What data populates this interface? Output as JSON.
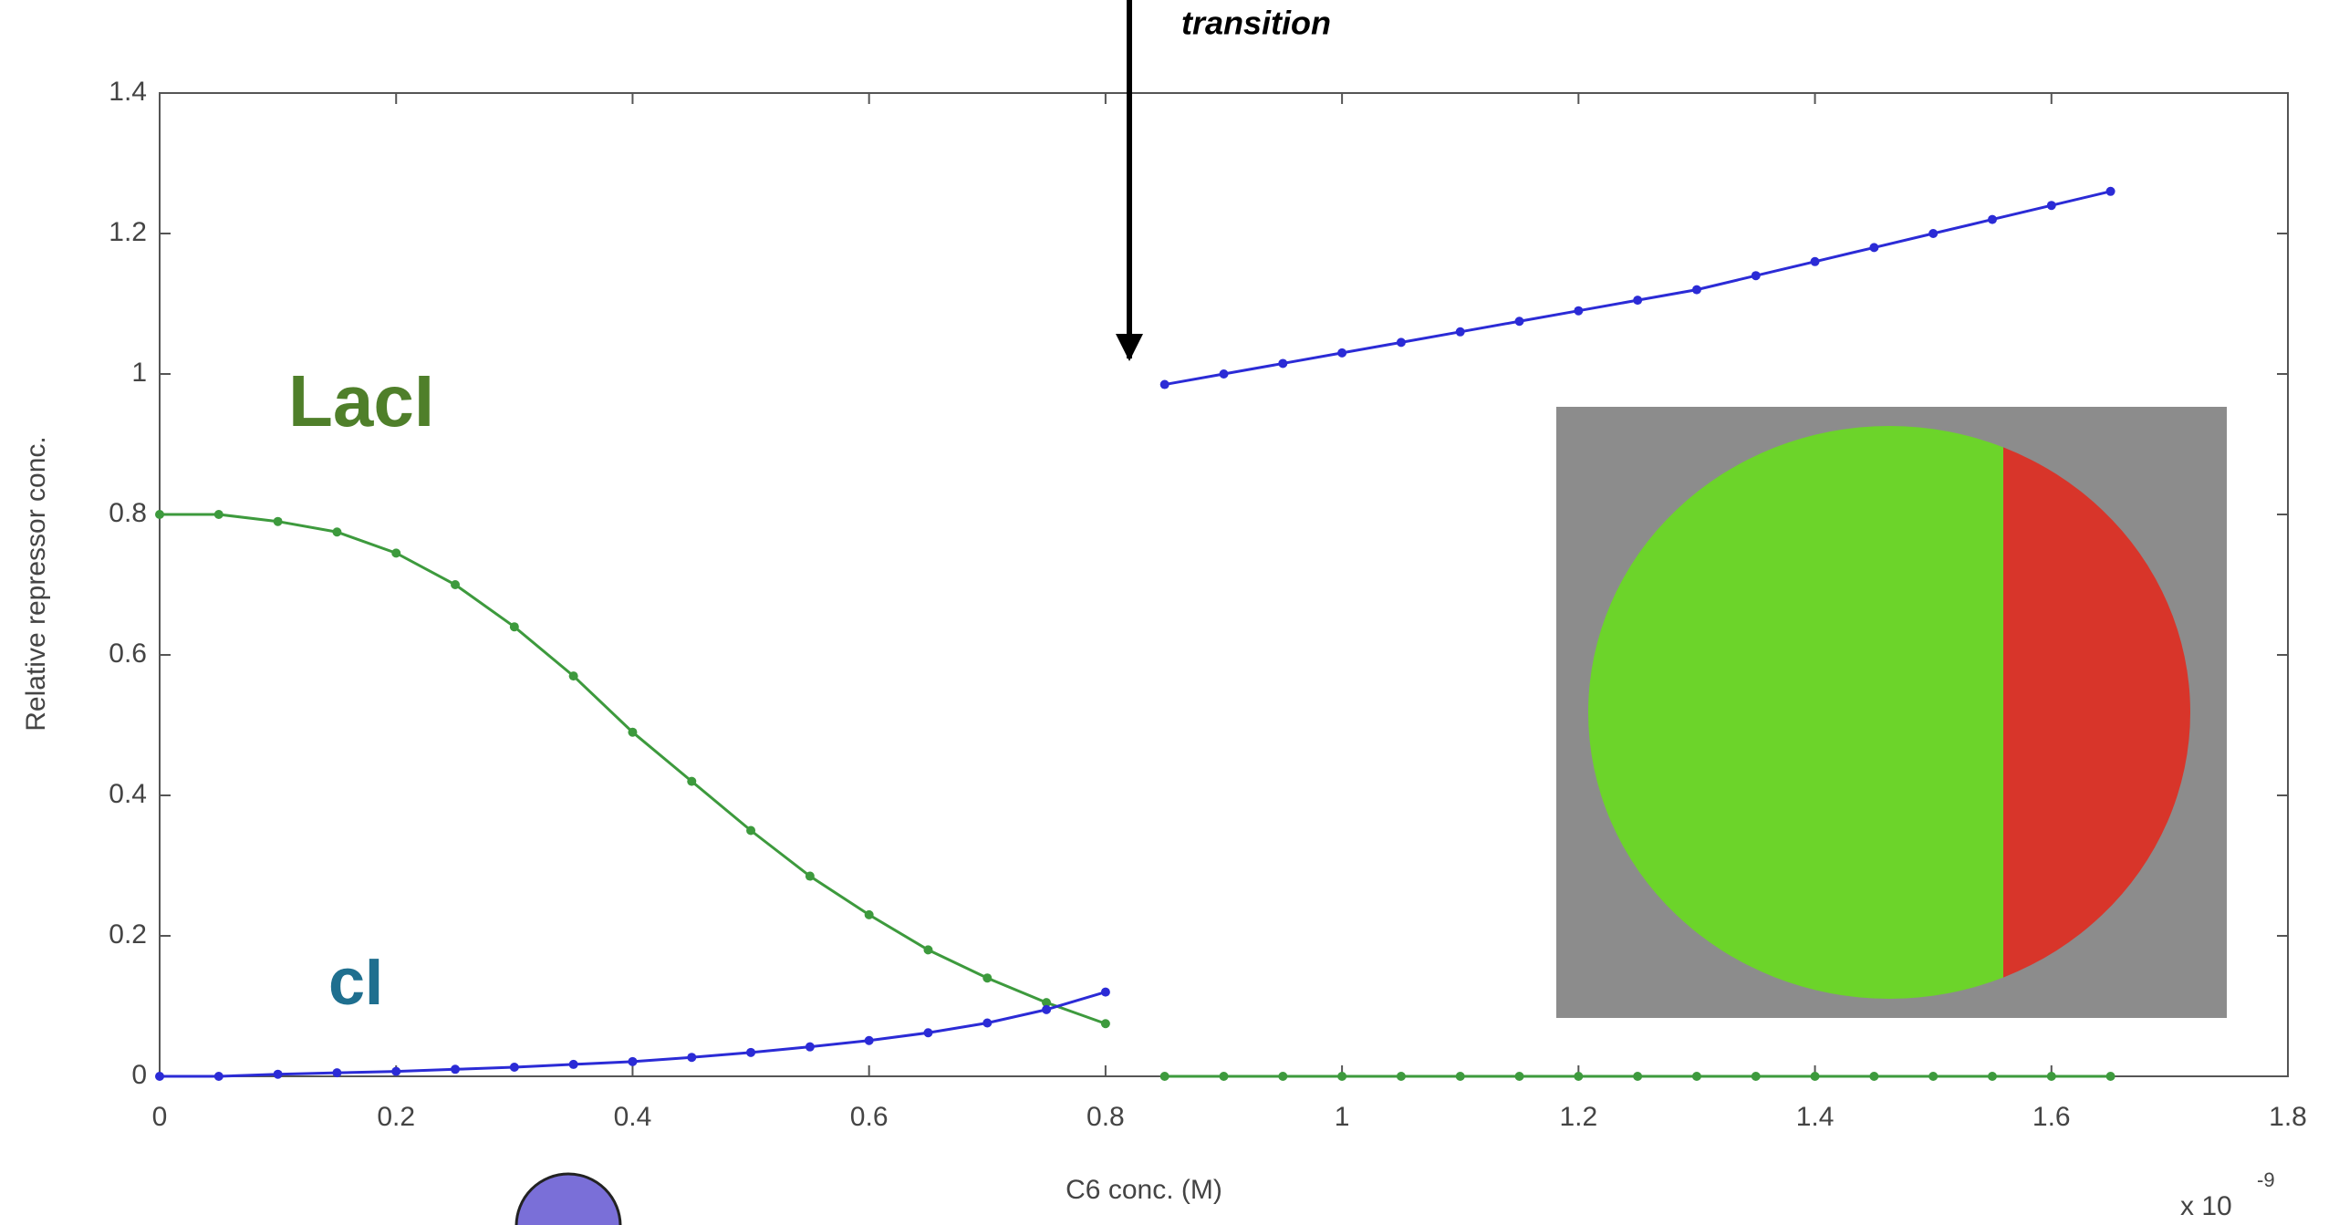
{
  "chart_data": {
    "type": "line",
    "annotations": {
      "transition": "transition",
      "laci": "LacI",
      "ci": "cI",
      "x_multiplier": "x 10",
      "x_exponent": "-9"
    },
    "x_label": "C6 conc. (M)",
    "y_label": "Relative repressor conc.",
    "x": [
      0,
      0.05,
      0.1,
      0.15,
      0.2,
      0.25,
      0.3,
      0.35,
      0.4,
      0.45,
      0.5,
      0.55,
      0.6,
      0.65,
      0.7,
      0.75,
      0.8,
      null,
      0.85,
      0.9,
      0.95,
      1.0,
      1.05,
      1.1,
      1.15,
      1.2,
      1.25,
      1.3,
      1.35,
      1.4,
      1.45,
      1.5,
      1.55,
      1.6,
      1.65
    ],
    "series": [
      {
        "name": "LacI",
        "color": "#3d9a3d",
        "values": [
          0.8,
          0.8,
          0.79,
          0.775,
          0.745,
          0.7,
          0.64,
          0.57,
          0.49,
          0.42,
          0.35,
          0.285,
          0.23,
          0.18,
          0.14,
          0.105,
          0.075,
          null,
          0,
          0,
          0,
          0,
          0,
          0,
          0,
          0,
          0,
          0,
          0,
          0,
          0,
          0,
          0,
          0,
          0
        ]
      },
      {
        "name": "cI",
        "color": "#2b2bd6",
        "values": [
          0,
          0,
          0.003,
          0.005,
          0.007,
          0.01,
          0.013,
          0.017,
          0.021,
          0.027,
          0.034,
          0.042,
          0.051,
          0.062,
          0.076,
          0.095,
          0.12,
          null,
          0.985,
          1.0,
          1.015,
          1.03,
          1.045,
          1.06,
          1.075,
          1.09,
          1.105,
          1.12,
          1.14,
          1.16,
          1.18,
          1.2,
          1.22,
          1.24,
          1.26
        ]
      }
    ],
    "xlim": [
      0,
      1.8
    ],
    "xticks": [
      0,
      0.2,
      0.4,
      0.6,
      0.8,
      1,
      1.2,
      1.4,
      1.6,
      1.8
    ],
    "ylim": [
      0,
      1.4
    ],
    "yticks": [
      0,
      0.2,
      0.4,
      0.6,
      0.8,
      1,
      1.2,
      1.4
    ],
    "grid": false
  }
}
